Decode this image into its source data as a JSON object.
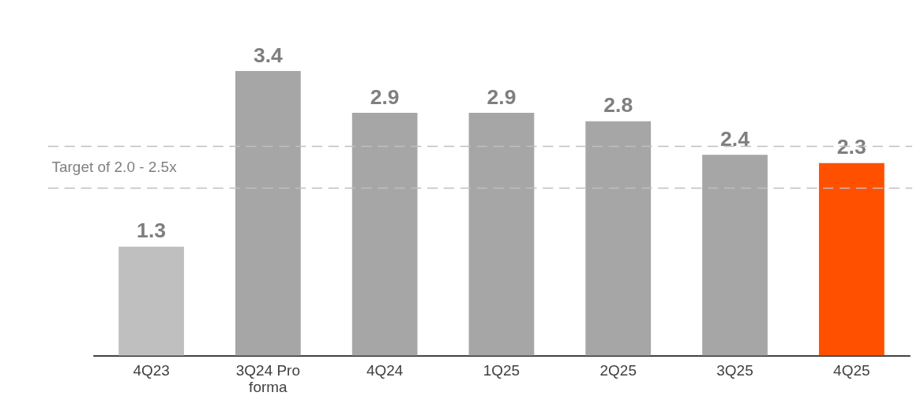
{
  "chart_data": {
    "type": "bar",
    "categories": [
      "4Q23",
      "3Q24 Pro forma",
      "4Q24",
      "1Q25",
      "2Q25",
      "3Q25",
      "4Q25"
    ],
    "values": [
      1.3,
      3.4,
      2.9,
      2.9,
      2.8,
      2.4,
      2.3
    ],
    "colors": [
      "#bfbfbf",
      "#a6a6a6",
      "#a6a6a6",
      "#a6a6a6",
      "#a6a6a6",
      "#a6a6a6",
      "#ff5000"
    ],
    "data_labels": true,
    "ylim": [
      0,
      3.4
    ],
    "tick_labels": "x",
    "grid": false,
    "ref_lines": [
      {
        "axis": "y",
        "value": 2.5,
        "color": "#bfbfbf",
        "line_style": "dashed"
      },
      {
        "axis": "y",
        "value": 2.0,
        "color": "#bfbfbf",
        "line_style": "dashed"
      }
    ],
    "annotations": [
      "Target of 2.0 - 2.5x"
    ]
  }
}
